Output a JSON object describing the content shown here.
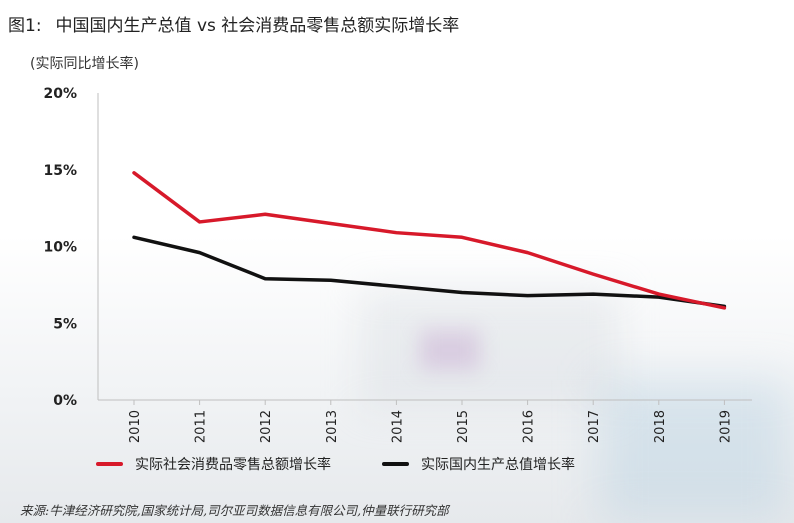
{
  "header": {
    "title_number": "图1:",
    "title_text": "中国国内生产总值 vs 社会消费品零售总额实际增长率",
    "unit_label": "(实际同比增长率)"
  },
  "footer": {
    "source": "来源:牛津经济研究院,国家统计局,司尔亚司数据信息有限公司,仲量联行研究部"
  },
  "chart_data": {
    "type": "line",
    "title": "中国国内生产总值 vs 社会消费品零售总额实际增长率",
    "ylabel": "(实际同比增长率)",
    "xlabel": "",
    "x": [
      "2010",
      "2011",
      "2012",
      "2013",
      "2014",
      "2015",
      "2016",
      "2017",
      "2018",
      "2019"
    ],
    "ylim": [
      0,
      20
    ],
    "yticks": [
      0,
      5,
      10,
      15,
      20
    ],
    "ytick_labels": [
      "0%",
      "5%",
      "10%",
      "15%",
      "20%"
    ],
    "grid": false,
    "legend_position": "bottom",
    "series": [
      {
        "name": "实际社会消费品零售总额增长率",
        "color": "#d7192a",
        "values": [
          14.8,
          11.6,
          12.1,
          11.5,
          10.9,
          10.6,
          9.6,
          8.2,
          6.9,
          6.0
        ]
      },
      {
        "name": "实际国内生产总值增长率",
        "color": "#111111",
        "values": [
          10.6,
          9.6,
          7.9,
          7.8,
          7.4,
          7.0,
          6.8,
          6.9,
          6.7,
          6.1
        ]
      }
    ]
  }
}
